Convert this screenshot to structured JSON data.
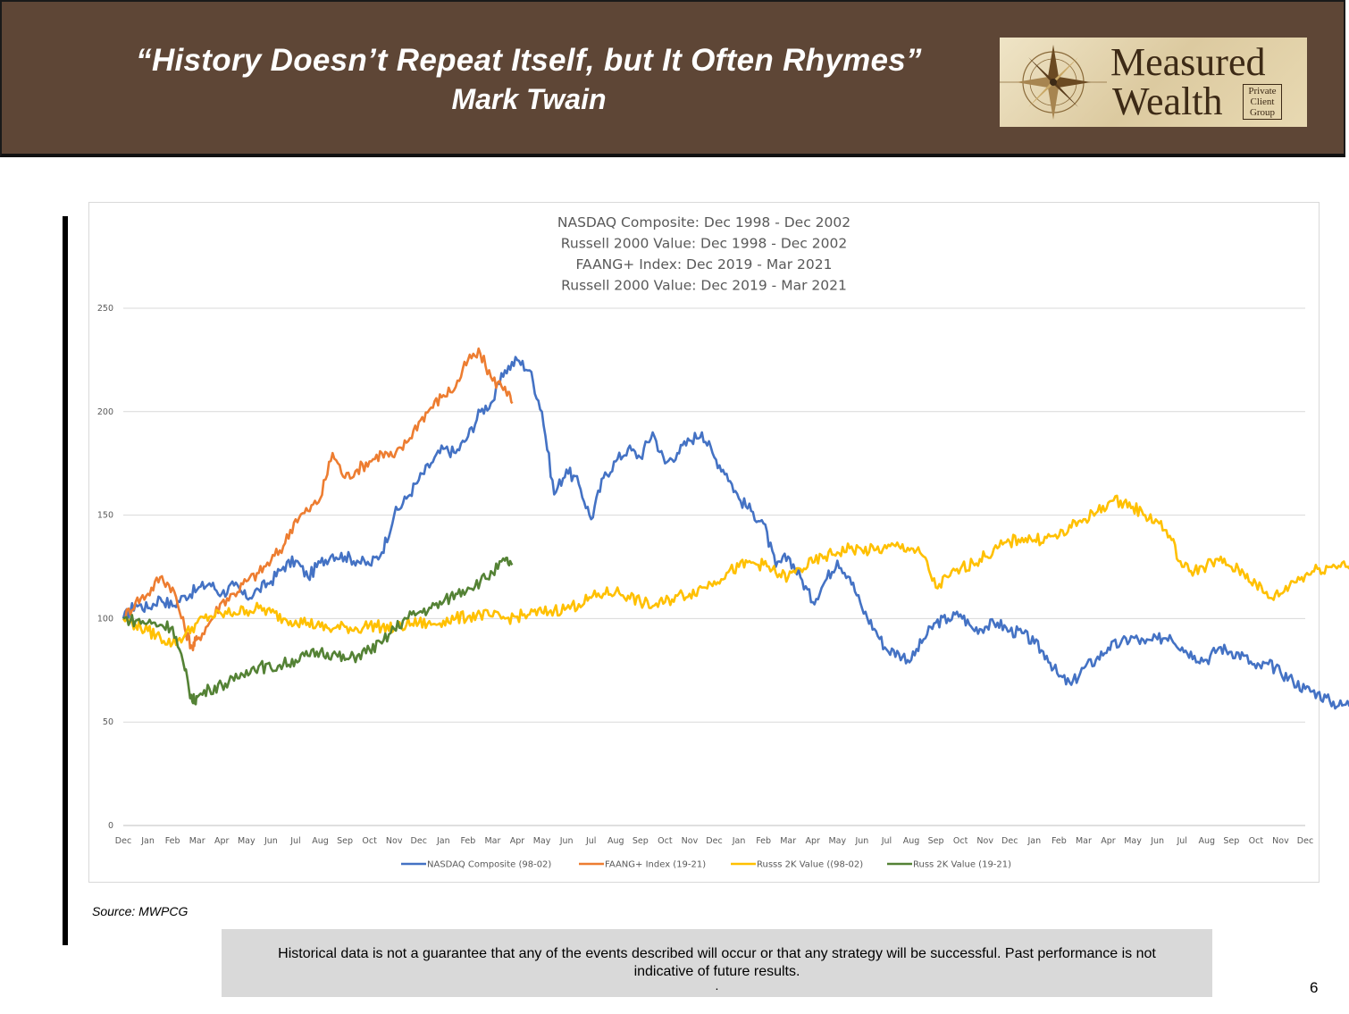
{
  "header": {
    "quote": "“History Doesn’t Repeat Itself, but It Often Rhymes”",
    "author": "Mark Twain"
  },
  "logo": {
    "word1": "Measured",
    "word2": "Wealth",
    "sub1": "Private",
    "sub2": "Client",
    "sub3": "Group",
    "icon": "compass-rose-icon"
  },
  "chart_data": {
    "type": "line",
    "title_lines": [
      "NASDAQ Composite: Dec 1998 - Dec 2002",
      "Russell 2000 Value: Dec 1998 - Dec 2002",
      "FAANG+ Index: Dec 2019 - Mar 2021",
      "Russell 2000 Value: Dec 2019 - Mar 2021"
    ],
    "ylim": [
      0,
      250
    ],
    "yticks": [
      0,
      50,
      100,
      150,
      200,
      250
    ],
    "xticks": [
      "Dec",
      "Jan",
      "Feb",
      "Mar",
      "Apr",
      "May",
      "Jun",
      "Jul",
      "Aug",
      "Sep",
      "Oct",
      "Nov",
      "Dec",
      "Jan",
      "Feb",
      "Mar",
      "Apr",
      "May",
      "Jun",
      "Jul",
      "Aug",
      "Sep",
      "Oct",
      "Nov",
      "Dec",
      "Jan",
      "Feb",
      "Mar",
      "Apr",
      "May",
      "Jun",
      "Jul",
      "Aug",
      "Sep",
      "Oct",
      "Nov",
      "Dec",
      "Jan",
      "Feb",
      "Mar",
      "Apr",
      "May",
      "Jun",
      "Jul",
      "Aug",
      "Sep",
      "Oct",
      "Nov",
      "Dec"
    ],
    "grid": true,
    "legend_position": "bottom",
    "series": [
      {
        "name": "NASDAQ Composite (98-02)",
        "color": "#4472c4",
        "points": [
          [
            0,
            100
          ],
          [
            0.5,
            107
          ],
          [
            1,
            105
          ],
          [
            1.5,
            110
          ],
          [
            2,
            106
          ],
          [
            2.5,
            111
          ],
          [
            3,
            114
          ],
          [
            3.5,
            117
          ],
          [
            4,
            112
          ],
          [
            4.5,
            116
          ],
          [
            5,
            110
          ],
          [
            5.5,
            114
          ],
          [
            6,
            118
          ],
          [
            6.5,
            125
          ],
          [
            7,
            128
          ],
          [
            7.5,
            120
          ],
          [
            8,
            127
          ],
          [
            8.5,
            131
          ],
          [
            9,
            130
          ],
          [
            9.5,
            128
          ],
          [
            10,
            126
          ],
          [
            10.5,
            132
          ],
          [
            11,
            150
          ],
          [
            11.5,
            158
          ],
          [
            12,
            167
          ],
          [
            12.5,
            175
          ],
          [
            13,
            182
          ],
          [
            13.5,
            180
          ],
          [
            14,
            188
          ],
          [
            14.5,
            200
          ],
          [
            15,
            205
          ],
          [
            15.5,
            220
          ],
          [
            16,
            225
          ],
          [
            16.5,
            220
          ],
          [
            17,
            200
          ],
          [
            17.5,
            160
          ],
          [
            18,
            172
          ],
          [
            18.5,
            165
          ],
          [
            19,
            148
          ],
          [
            19.5,
            168
          ],
          [
            20,
            176
          ],
          [
            20.5,
            182
          ],
          [
            21,
            178
          ],
          [
            21.5,
            190
          ],
          [
            22,
            175
          ],
          [
            22.5,
            180
          ],
          [
            23,
            186
          ],
          [
            23.5,
            190
          ],
          [
            24,
            178
          ],
          [
            24.5,
            170
          ],
          [
            25,
            158
          ],
          [
            25.5,
            152
          ],
          [
            26,
            146
          ],
          [
            26.5,
            125
          ],
          [
            27,
            130
          ],
          [
            27.5,
            120
          ],
          [
            28,
            108
          ],
          [
            28.5,
            118
          ],
          [
            29,
            128
          ],
          [
            29.5,
            120
          ],
          [
            30,
            105
          ],
          [
            30.5,
            95
          ],
          [
            31,
            85
          ],
          [
            31.5,
            83
          ],
          [
            32,
            80
          ],
          [
            32.5,
            90
          ],
          [
            33,
            98
          ],
          [
            33.5,
            100
          ],
          [
            34,
            102
          ],
          [
            34.5,
            95
          ],
          [
            35,
            96
          ],
          [
            35.5,
            98
          ],
          [
            36,
            94
          ],
          [
            36.5,
            93
          ],
          [
            37,
            88
          ],
          [
            37.5,
            82
          ],
          [
            38,
            72
          ],
          [
            38.5,
            68
          ],
          [
            39,
            76
          ],
          [
            39.5,
            80
          ],
          [
            40,
            86
          ],
          [
            40.5,
            88
          ],
          [
            41,
            91
          ],
          [
            41.5,
            88
          ],
          [
            42,
            90
          ],
          [
            42.5,
            92
          ],
          [
            43,
            86
          ],
          [
            43.5,
            82
          ],
          [
            44,
            80
          ],
          [
            44.5,
            86
          ],
          [
            45,
            84
          ],
          [
            45.5,
            82
          ],
          [
            46,
            76
          ],
          [
            46.5,
            78
          ],
          [
            47,
            74
          ],
          [
            47.5,
            70
          ],
          [
            48,
            66
          ],
          [
            48.5,
            64
          ],
          [
            49,
            60
          ],
          [
            49.5,
            58
          ],
          [
            50,
            60
          ],
          [
            50.5,
            63
          ],
          [
            51,
            60
          ],
          [
            51.5,
            58
          ],
          [
            52,
            55
          ],
          [
            52.5,
            58
          ],
          [
            53,
            60
          ],
          [
            53.5,
            63
          ],
          [
            54,
            65
          ],
          [
            54.5,
            67
          ],
          [
            55,
            64
          ],
          [
            55.5,
            62
          ],
          [
            56,
            61
          ]
        ]
      },
      {
        "name": "FAANG+ Index (19-21)",
        "color": "#ed7d31",
        "points": [
          [
            0,
            100
          ],
          [
            0.5,
            108
          ],
          [
            1,
            112
          ],
          [
            1.5,
            120
          ],
          [
            2,
            115
          ],
          [
            2.5,
            95
          ],
          [
            2.8,
            86
          ],
          [
            3,
            90
          ],
          [
            3.5,
            98
          ],
          [
            4,
            108
          ],
          [
            4.5,
            112
          ],
          [
            5,
            118
          ],
          [
            5.5,
            122
          ],
          [
            6,
            128
          ],
          [
            6.5,
            135
          ],
          [
            7,
            148
          ],
          [
            7.5,
            152
          ],
          [
            8,
            158
          ],
          [
            8.5,
            180
          ],
          [
            9,
            168
          ],
          [
            9.5,
            172
          ],
          [
            10,
            176
          ],
          [
            10.5,
            180
          ],
          [
            11,
            178
          ],
          [
            11.5,
            185
          ],
          [
            12,
            195
          ],
          [
            12.5,
            202
          ],
          [
            13,
            208
          ],
          [
            13.5,
            212
          ],
          [
            14,
            225
          ],
          [
            14.5,
            228
          ],
          [
            15,
            215
          ],
          [
            15.5,
            212
          ],
          [
            15.8,
            204
          ]
        ]
      },
      {
        "name": "Russs 2K Value ((98-02)",
        "color": "#ffc000",
        "points": [
          [
            0,
            100
          ],
          [
            0.5,
            97
          ],
          [
            1,
            94
          ],
          [
            1.5,
            91
          ],
          [
            2,
            88
          ],
          [
            2.5,
            92
          ],
          [
            3,
            98
          ],
          [
            3.5,
            101
          ],
          [
            4,
            102
          ],
          [
            4.5,
            103
          ],
          [
            5,
            104
          ],
          [
            5.5,
            105
          ],
          [
            6,
            103
          ],
          [
            6.5,
            100
          ],
          [
            7,
            99
          ],
          [
            7.5,
            98
          ],
          [
            8,
            96
          ],
          [
            8.5,
            95
          ],
          [
            9,
            96
          ],
          [
            9.5,
            95
          ],
          [
            10,
            97
          ],
          [
            10.5,
            96
          ],
          [
            11,
            95
          ],
          [
            11.5,
            97
          ],
          [
            12,
            98
          ],
          [
            12.5,
            97
          ],
          [
            13,
            99
          ],
          [
            13.5,
            100
          ],
          [
            14,
            101
          ],
          [
            14.5,
            102
          ],
          [
            15,
            101
          ],
          [
            15.5,
            100
          ],
          [
            16,
            101
          ],
          [
            16.5,
            102
          ],
          [
            17,
            103
          ],
          [
            17.5,
            104
          ],
          [
            18,
            105
          ],
          [
            18.5,
            107
          ],
          [
            19,
            110
          ],
          [
            19.5,
            112
          ],
          [
            20,
            113
          ],
          [
            20.5,
            111
          ],
          [
            21,
            108
          ],
          [
            21.5,
            106
          ],
          [
            22,
            108
          ],
          [
            22.5,
            111
          ],
          [
            23,
            112
          ],
          [
            23.5,
            115
          ],
          [
            24,
            118
          ],
          [
            24.5,
            122
          ],
          [
            25,
            125
          ],
          [
            25.5,
            127
          ],
          [
            26,
            126
          ],
          [
            26.5,
            122
          ],
          [
            27,
            120
          ],
          [
            27.5,
            124
          ],
          [
            28,
            127
          ],
          [
            28.5,
            130
          ],
          [
            29,
            132
          ],
          [
            29.5,
            134
          ],
          [
            30,
            133
          ],
          [
            30.5,
            133
          ],
          [
            31,
            134
          ],
          [
            31.5,
            135
          ],
          [
            32,
            134
          ],
          [
            32.5,
            130
          ],
          [
            33,
            115
          ],
          [
            33.5,
            120
          ],
          [
            34,
            124
          ],
          [
            34.5,
            127
          ],
          [
            35,
            130
          ],
          [
            35.5,
            134
          ],
          [
            36,
            137
          ],
          [
            36.5,
            139
          ],
          [
            37,
            138
          ],
          [
            37.5,
            139
          ],
          [
            38,
            140
          ],
          [
            38.5,
            144
          ],
          [
            39,
            148
          ],
          [
            39.5,
            151
          ],
          [
            40,
            156
          ],
          [
            40.5,
            157
          ],
          [
            41,
            154
          ],
          [
            41.5,
            150
          ],
          [
            42,
            147
          ],
          [
            42.5,
            140
          ],
          [
            43,
            125
          ],
          [
            43.5,
            123
          ],
          [
            44,
            126
          ],
          [
            44.5,
            128
          ],
          [
            45,
            125
          ],
          [
            45.5,
            122
          ],
          [
            46,
            117
          ],
          [
            46.5,
            110
          ],
          [
            47,
            112
          ],
          [
            47.5,
            118
          ],
          [
            48,
            121
          ],
          [
            48.5,
            124
          ],
          [
            49,
            125
          ],
          [
            49.5,
            127
          ],
          [
            50,
            124
          ]
        ]
      },
      {
        "name": "Russ 2K Value (19-21)",
        "color": "#548235",
        "points": [
          [
            0,
            100
          ],
          [
            0.5,
            99
          ],
          [
            1,
            98
          ],
          [
            1.5,
            97
          ],
          [
            2,
            96
          ],
          [
            2.5,
            75
          ],
          [
            2.8,
            60
          ],
          [
            3,
            62
          ],
          [
            3.5,
            66
          ],
          [
            4,
            68
          ],
          [
            4.5,
            70
          ],
          [
            5,
            75
          ],
          [
            5.5,
            77
          ],
          [
            6,
            76
          ],
          [
            6.5,
            78
          ],
          [
            7,
            80
          ],
          [
            7.5,
            82
          ],
          [
            8,
            84
          ],
          [
            8.5,
            83
          ],
          [
            9,
            80
          ],
          [
            9.5,
            82
          ],
          [
            10,
            85
          ],
          [
            10.5,
            88
          ],
          [
            11,
            95
          ],
          [
            11.5,
            100
          ],
          [
            12,
            103
          ],
          [
            12.5,
            105
          ],
          [
            13,
            108
          ],
          [
            13.5,
            112
          ],
          [
            14,
            115
          ],
          [
            14.5,
            118
          ],
          [
            15,
            122
          ],
          [
            15.5,
            128
          ],
          [
            15.8,
            126
          ]
        ]
      }
    ]
  },
  "source": "Source: MWPCG",
  "disclaimer": {
    "text": "Historical data is not a guarantee that any of the events described will occur or that any strategy will be successful. Past performance is not indicative of future results.",
    "dot": "."
  },
  "page_number": "6"
}
